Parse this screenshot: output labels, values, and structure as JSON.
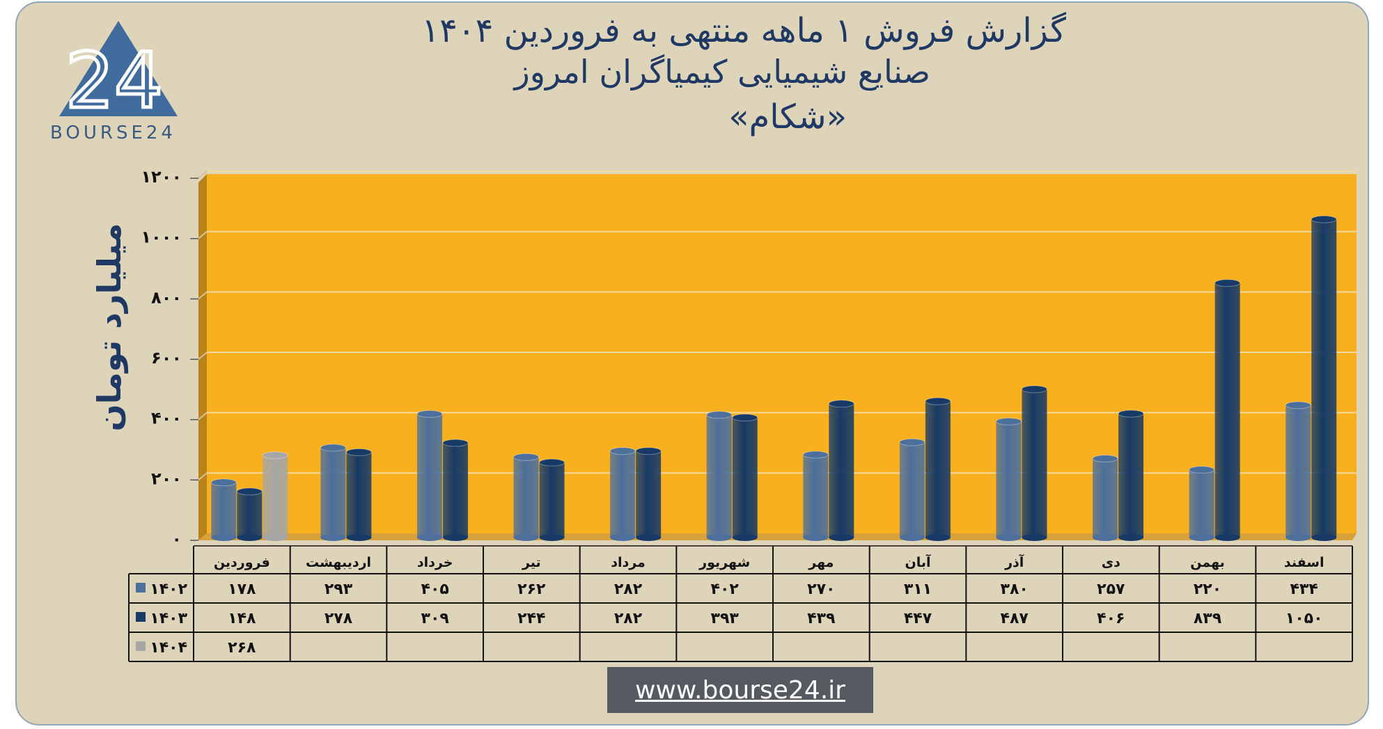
{
  "header": {
    "title_line1": "گزارش  فروش ۱ ماهه منتهی به فروردین ۱۴۰۴",
    "title_line2": "صنایع شیمیایی کیمیاگران امروز",
    "title_line3": "«شکام»"
  },
  "logo": {
    "text": "BOURSE24",
    "mark": "24"
  },
  "footer": {
    "url": "www.bourse24.ir"
  },
  "chart_data": {
    "type": "bar",
    "title": "گزارش  فروش ۱ ماهه منتهی به فروردین ۱۴۰۴",
    "ylabel": "میلیارد تومان",
    "ylim": [
      0,
      1200
    ],
    "yticks": [
      0,
      200,
      400,
      600,
      800,
      1000,
      1200
    ],
    "ytick_labels": [
      "۰",
      "۲۰۰",
      "۴۰۰",
      "۶۰۰",
      "۸۰۰",
      "۱۰۰۰",
      "۱۲۰۰"
    ],
    "grid": true,
    "legend": "table-left",
    "categories": [
      "فروردین",
      "اردیبهشت",
      "خرداد",
      "تیر",
      "مرداد",
      "شهریور",
      "مهر",
      "آبان",
      "آذر",
      "دی",
      "بهمن",
      "اسفند"
    ],
    "series": [
      {
        "name": "۱۴۰۲",
        "color": "#4d6f9c",
        "values": [
          178,
          293,
          405,
          262,
          282,
          402,
          270,
          311,
          380,
          257,
          220,
          434
        ],
        "labels": [
          "۱۷۸",
          "۲۹۳",
          "۴۰۵",
          "۲۶۲",
          "۲۸۲",
          "۴۰۲",
          "۲۷۰",
          "۳۱۱",
          "۳۸۰",
          "۲۵۷",
          "۲۲۰",
          "۴۳۴"
        ]
      },
      {
        "name": "۱۴۰۳",
        "color": "#173a66",
        "values": [
          148,
          278,
          309,
          244,
          282,
          393,
          439,
          447,
          487,
          406,
          839,
          1050
        ],
        "labels": [
          "۱۴۸",
          "۲۷۸",
          "۳۰۹",
          "۲۴۴",
          "۲۸۲",
          "۳۹۳",
          "۴۳۹",
          "۴۴۷",
          "۴۸۷",
          "۴۰۶",
          "۸۳۹",
          "۱۰۵۰"
        ]
      },
      {
        "name": "۱۴۰۴",
        "color": "#a6a6a6",
        "values": [
          268,
          null,
          null,
          null,
          null,
          null,
          null,
          null,
          null,
          null,
          null,
          null
        ],
        "labels": [
          "۲۶۸",
          "",
          "",
          "",
          "",
          "",
          "",
          "",
          "",
          "",
          "",
          ""
        ]
      }
    ],
    "colors": {
      "plot_bg": "#f8b01e",
      "plot_side": "#b8841a",
      "frame_bg": "#ddd4ba",
      "text": "#1f3864"
    }
  }
}
